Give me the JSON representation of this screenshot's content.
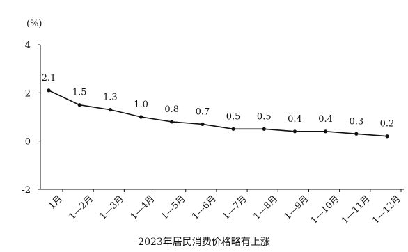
{
  "chart_data": {
    "type": "line",
    "title": "",
    "caption": "2023年居民消费价格略有上涨",
    "ylabel": "(%)",
    "xlabel": "",
    "ylim": [
      -2,
      4
    ],
    "yticks": [
      "4",
      "2",
      "0",
      "-2"
    ],
    "categories": [
      "1月",
      "1—2月",
      "1—3月",
      "1—4月",
      "1—5月",
      "1—6月",
      "1—7月",
      "1—8月",
      "1—9月",
      "1—10月",
      "1—11月",
      "1—12月"
    ],
    "values": [
      2.1,
      1.5,
      1.3,
      1.0,
      0.8,
      0.7,
      0.5,
      0.5,
      0.4,
      0.4,
      0.3,
      0.2
    ],
    "value_labels": [
      "2.1",
      "1.5",
      "1.3",
      "1.0",
      "0.8",
      "0.7",
      "0.5",
      "0.5",
      "0.4",
      "0.4",
      "0.3",
      "0.2"
    ],
    "grid": false,
    "line_color": "#111111"
  }
}
